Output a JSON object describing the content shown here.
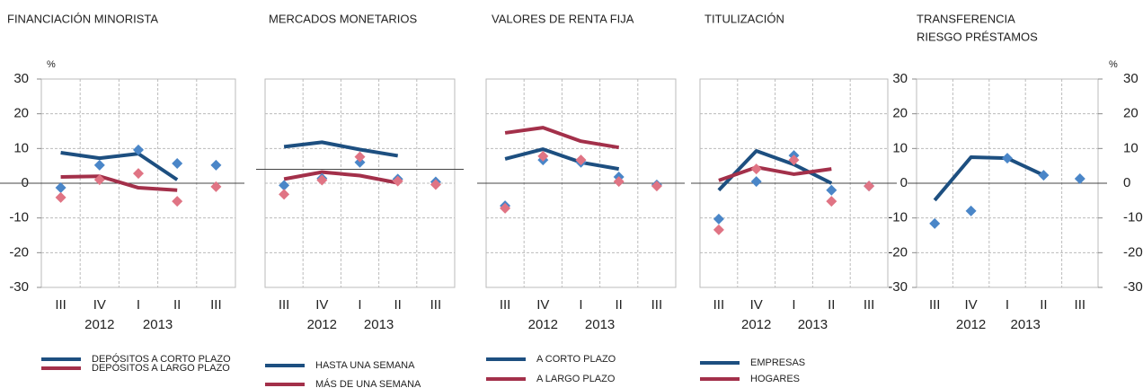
{
  "chart_data": [
    {
      "type": "line",
      "title": [
        "FINANCIACIÓN MINORISTA"
      ],
      "unit": "%",
      "ytick_side": "left",
      "categories": [
        "III",
        "IV",
        "I",
        "II",
        "III"
      ],
      "year_labels": [
        "2012",
        "2013"
      ],
      "ylim": [
        -30,
        30
      ],
      "yticks": [
        -30,
        -20,
        -10,
        0,
        10,
        20,
        30
      ],
      "series": [
        {
          "name": "DEPÓSITOS A CORTO PLAZO",
          "color": "#1d4f80",
          "marker_color": "#4a86c8",
          "values": [
            8.8,
            7.2,
            8.5,
            1,
            null
          ],
          "points": [
            -1.3,
            5.2,
            9.6,
            5.7,
            5.2
          ]
        },
        {
          "name": "DEPÓSITOS A LARGO PLAZO",
          "color": "#a3304a",
          "marker_color": "#e07484",
          "values": [
            1.8,
            2,
            -1.3,
            -2,
            null
          ],
          "points": [
            -4.1,
            1,
            2.8,
            -5.2,
            -1
          ]
        }
      ]
    },
    {
      "type": "line",
      "title": [
        "MERCADOS MONETARIOS"
      ],
      "categories": [
        "III",
        "IV",
        "I",
        "II",
        "III"
      ],
      "year_labels": [
        "2012",
        "2013"
      ],
      "ylim": [
        -34,
        26
      ],
      "series": [
        {
          "name": "HASTA UNA SEMANA",
          "color": "#1d4f80",
          "marker_color": "#4a86c8",
          "values": [
            6.5,
            7.8,
            5.7,
            3.9,
            null
          ],
          "points": [
            -4.6,
            -2.6,
            2,
            -2.8,
            -3.6
          ]
        },
        {
          "name": "MÁS DE UNA SEMANA",
          "color": "#a3304a",
          "marker_color": "#e07484",
          "values": [
            -2.8,
            -0.8,
            -1.8,
            -3.9,
            null
          ],
          "points": [
            -7.2,
            -3.1,
            3.6,
            -3.4,
            -4.4
          ]
        }
      ]
    },
    {
      "type": "line",
      "title": [
        "VALORES DE RENTA FIJA"
      ],
      "categories": [
        "III",
        "IV",
        "I",
        "II",
        "III"
      ],
      "year_labels": [
        "2012",
        "2013"
      ],
      "ylim": [
        -30,
        30
      ],
      "series": [
        {
          "name": "A CORTO PLAZO",
          "color": "#1d4f80",
          "marker_color": "#4a86c8",
          "values": [
            7,
            9.8,
            6,
            4.1,
            null
          ],
          "points": [
            -6.5,
            6.7,
            6,
            1.8,
            -0.5
          ]
        },
        {
          "name": "A LARGO PLAZO",
          "color": "#a3304a",
          "marker_color": "#e07484",
          "values": [
            14.5,
            16,
            12.1,
            10.3,
            null
          ],
          "points": [
            -7.2,
            7.8,
            6.7,
            0.5,
            -0.8
          ]
        }
      ]
    },
    {
      "type": "line",
      "title": [
        "TITULIZACIÓN"
      ],
      "categories": [
        "III",
        "IV",
        "I",
        "II",
        "III"
      ],
      "year_labels": [
        "2012",
        "2013"
      ],
      "ylim": [
        -30,
        30
      ],
      "series": [
        {
          "name": "EMPRESAS",
          "color": "#1d4f80",
          "marker_color": "#4a86c8",
          "values": [
            -2,
            9.3,
            5.4,
            0,
            null
          ],
          "points": [
            -10.3,
            0.5,
            8,
            -2,
            -0.8
          ]
        },
        {
          "name": "HOGARES",
          "color": "#a3304a",
          "marker_color": "#e07484",
          "values": [
            0.8,
            4.6,
            2.6,
            4.1,
            null
          ],
          "points": [
            -13.4,
            4.1,
            6.7,
            -5.2,
            -0.8
          ]
        }
      ]
    },
    {
      "type": "line",
      "title": [
        "TRANSFERENCIA",
        "RIESGO PRÉSTAMOS"
      ],
      "unit": "%",
      "ytick_side": "both",
      "categories": [
        "III",
        "IV",
        "I",
        "II",
        "III"
      ],
      "year_labels": [
        "2012",
        "2013"
      ],
      "ylim": [
        -30,
        30
      ],
      "yticks": [
        -30,
        -20,
        -10,
        0,
        10,
        20,
        30
      ],
      "series": [
        {
          "color": "#1d4f80",
          "marker_color": "#4a86c8",
          "values": [
            -4.9,
            7.5,
            7.2,
            2.3,
            null
          ],
          "points": [
            -11.6,
            -8,
            7.2,
            2.3,
            1.3
          ]
        }
      ]
    }
  ]
}
